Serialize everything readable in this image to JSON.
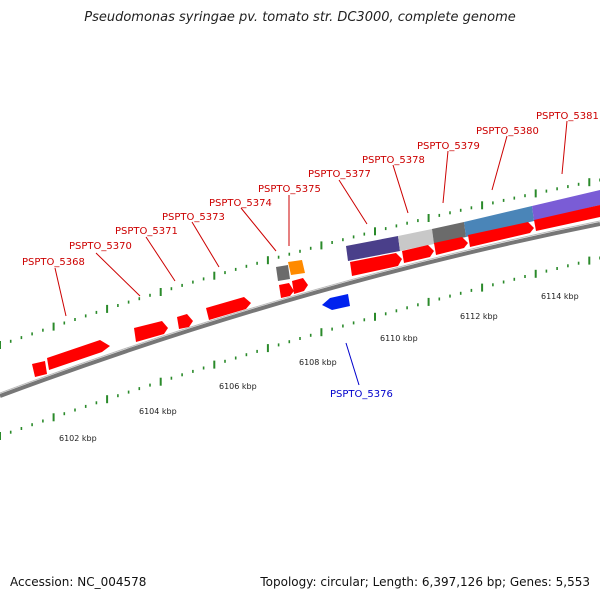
{
  "title": "Pseudomonas syringae pv. tomato str. DC3000, complete genome",
  "footer": {
    "accession": "Accession: NC_004578",
    "summary": "Topology: circular; Length: 6,397,126 bp; Genes: 5,553"
  },
  "colors": {
    "gene": "#ff0000",
    "reverse_gene": "#0022ee",
    "backbone": "#888888",
    "track_marks": "#2a8a2a",
    "label_forward": "#cc0000",
    "label_reverse": "#0000cc"
  },
  "scale_ticks": [
    "6102 kbp",
    "6104 kbp",
    "6106 kbp",
    "6108 kbp",
    "6110 kbp",
    "6112 kbp",
    "6114 kbp"
  ],
  "gene_labels": {
    "forward": [
      "PSPTO_5368",
      "PSPTO_5370",
      "PSPTO_5371",
      "PSPTO_5373",
      "PSPTO_5374",
      "PSPTO_5375",
      "PSPTO_5377",
      "PSPTO_5378",
      "PSPTO_5379",
      "PSPTO_5380",
      "PSPTO_5381"
    ],
    "reverse": [
      "PSPTO_5376"
    ]
  }
}
